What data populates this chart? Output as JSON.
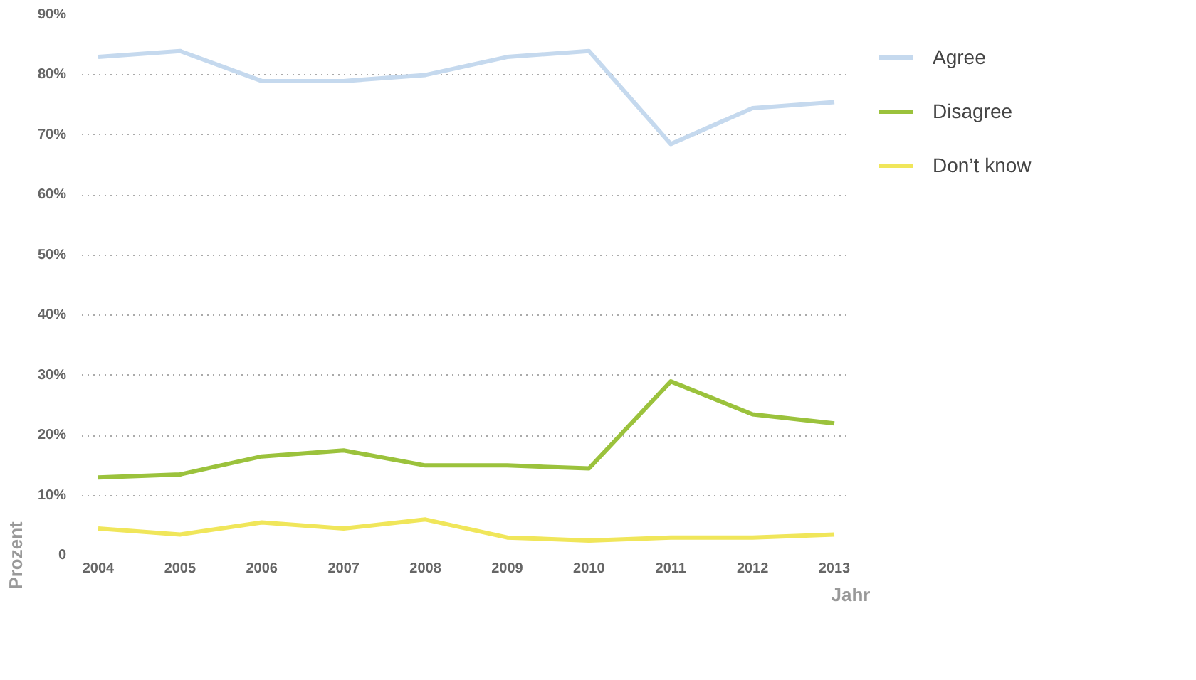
{
  "chart_data": {
    "type": "line",
    "xlabel": "Jahr",
    "ylabel": "Prozent",
    "x": [
      2004,
      2005,
      2006,
      2007,
      2008,
      2009,
      2010,
      2011,
      2012,
      2013
    ],
    "series": [
      {
        "name": "Agree",
        "color": "#c5d9ee",
        "values": [
          83,
          84,
          79,
          79,
          80,
          83,
          84,
          68.5,
          74.5,
          75.5
        ]
      },
      {
        "name": "Disagree",
        "color": "#9bc23c",
        "values": [
          13,
          13.5,
          16.5,
          17.5,
          15,
          15,
          14.5,
          29,
          23.5,
          22
        ]
      },
      {
        "name": "Don’t know",
        "color": "#f0e65a",
        "values": [
          4.5,
          3.5,
          5.5,
          4.5,
          6,
          3,
          2.5,
          3,
          3,
          3.5
        ]
      }
    ],
    "xlim": [
      2003.8,
      2013.2
    ],
    "ylim": [
      0,
      90
    ],
    "xticks": [
      2004,
      2005,
      2006,
      2007,
      2008,
      2009,
      2010,
      2011,
      2012,
      2013
    ],
    "yticks": [
      {
        "value": 0,
        "label": "0"
      },
      {
        "value": 10,
        "label": "10%"
      },
      {
        "value": 20,
        "label": "20%"
      },
      {
        "value": 30,
        "label": "30%"
      },
      {
        "value": 40,
        "label": "40%"
      },
      {
        "value": 50,
        "label": "50%"
      },
      {
        "value": 60,
        "label": "60%"
      },
      {
        "value": 70,
        "label": "70%"
      },
      {
        "value": 80,
        "label": "80%"
      },
      {
        "value": 90,
        "label": "90%"
      }
    ],
    "grid": "y",
    "legend": "right",
    "marker": "none",
    "line_style": "solid"
  }
}
